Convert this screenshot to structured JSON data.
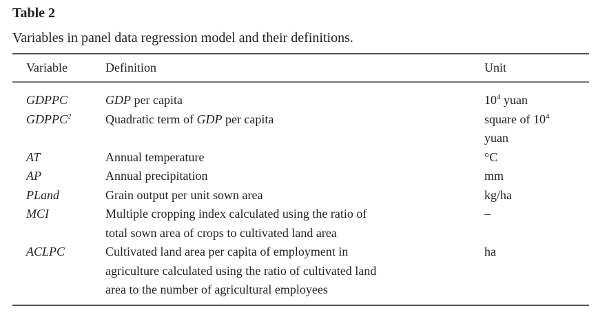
{
  "title": "Table 2",
  "caption": "Variables in panel data regression model and their definitions.",
  "headers": {
    "variable": "Variable",
    "definition": "Definition",
    "unit": "Unit"
  },
  "rows": [
    {
      "variable": "GDPPC",
      "sup": "",
      "definition": [
        [
          {
            "t": "GDP",
            "i": true
          },
          {
            "t": " per capita"
          }
        ]
      ],
      "unit": [
        [
          {
            "t": "10"
          },
          {
            "t": "4",
            "sup": true
          },
          {
            "t": " yuan"
          }
        ]
      ]
    },
    {
      "variable": "GDPPC",
      "sup": "2",
      "definition": [
        [
          {
            "t": "Quadratic term of "
          },
          {
            "t": "GDP",
            "i": true
          },
          {
            "t": " per capita"
          }
        ]
      ],
      "unit": [
        [
          {
            "t": "square of 10"
          },
          {
            "t": "4",
            "sup": true
          }
        ],
        [
          {
            "t": "yuan"
          }
        ]
      ]
    },
    {
      "variable": "AT",
      "sup": "",
      "definition": [
        [
          {
            "t": "Annual temperature"
          }
        ]
      ],
      "unit": [
        [
          {
            "t": "°C"
          }
        ]
      ]
    },
    {
      "variable": "AP",
      "sup": "",
      "definition": [
        [
          {
            "t": "Annual precipitation"
          }
        ]
      ],
      "unit": [
        [
          {
            "t": "mm"
          }
        ]
      ]
    },
    {
      "variable": "PLand",
      "sup": "",
      "definition": [
        [
          {
            "t": "Grain output per unit sown area"
          }
        ]
      ],
      "unit": [
        [
          {
            "t": "kg/ha"
          }
        ]
      ]
    },
    {
      "variable": "MCI",
      "sup": "",
      "definition": [
        [
          {
            "t": "Multiple cropping index calculated using the ratio of"
          }
        ],
        [
          {
            "t": "total sown area of crops to cultivated land area"
          }
        ]
      ],
      "unit": [
        [
          {
            "t": "–"
          }
        ]
      ]
    },
    {
      "variable": "ACLPC",
      "sup": "",
      "definition": [
        [
          {
            "t": "Cultivated land area per capita of employment in"
          }
        ],
        [
          {
            "t": "agriculture calculated using the ratio of cultivated land"
          }
        ],
        [
          {
            "t": "area to the number of agricultural employees"
          }
        ]
      ],
      "unit": [
        [
          {
            "t": "ha"
          }
        ]
      ]
    }
  ]
}
